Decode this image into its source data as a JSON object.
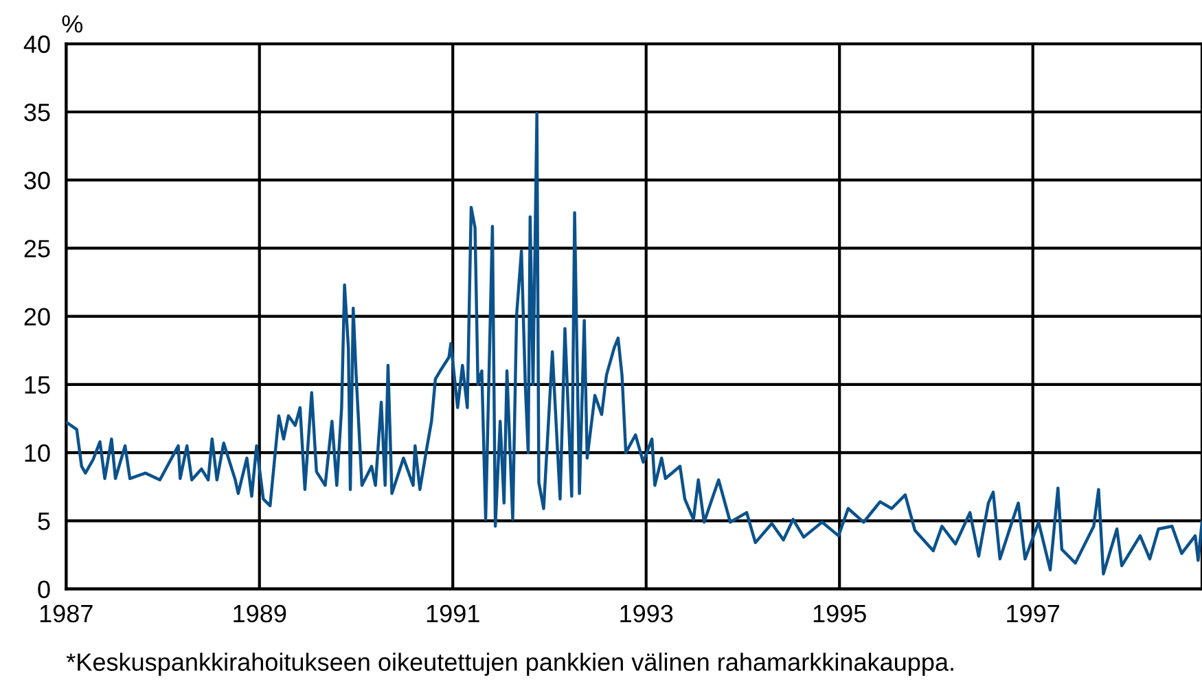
{
  "chart_data": {
    "type": "line",
    "ylabel": "%",
    "annotations": [
      "*Keskuspankkirahoitukseen oikeutettujen pankkien välinen rahamarkkinakauppa."
    ],
    "xlim": [
      1987,
      1998.75
    ],
    "xticks": [
      1987,
      1989,
      1991,
      1993,
      1995,
      1997
    ],
    "ylim": [
      0,
      40
    ],
    "yticks": [
      0,
      5,
      10,
      15,
      20,
      25,
      30,
      35,
      40
    ],
    "grid": true,
    "line_style": "solid",
    "marker": "none",
    "series": [
      {
        "color": "#0b528c",
        "x": [
          1987.01,
          1987.11,
          1987.16,
          1987.2,
          1987.28,
          1987.35,
          1987.4,
          1987.47,
          1987.51,
          1987.61,
          1987.66,
          1987.82,
          1987.97,
          1988.16,
          1988.18,
          1988.25,
          1988.3,
          1988.4,
          1988.47,
          1988.51,
          1988.56,
          1988.63,
          1988.75,
          1988.78,
          1988.87,
          1988.92,
          1988.97,
          1989.04,
          1989.11,
          1989.2,
          1989.25,
          1989.3,
          1989.37,
          1989.42,
          1989.47,
          1989.54,
          1989.59,
          1989.68,
          1989.75,
          1989.8,
          1989.85,
          1989.88,
          1989.92,
          1989.94,
          1989.97,
          1990.0,
          1990.06,
          1990.16,
          1990.2,
          1990.26,
          1990.3,
          1990.33,
          1990.37,
          1990.49,
          1990.59,
          1990.61,
          1990.66,
          1990.73,
          1990.78,
          1990.82,
          1990.87,
          1990.96,
          1990.98,
          1991.05,
          1991.1,
          1991.15,
          1991.19,
          1991.23,
          1991.26,
          1991.3,
          1991.34,
          1991.37,
          1991.41,
          1991.44,
          1991.49,
          1991.53,
          1991.56,
          1991.62,
          1991.66,
          1991.71,
          1991.75,
          1991.78,
          1991.8,
          1991.83,
          1991.87,
          1991.89,
          1991.94,
          1992.03,
          1992.11,
          1992.16,
          1992.23,
          1992.26,
          1992.31,
          1992.36,
          1992.39,
          1992.47,
          1992.54,
          1992.59,
          1992.67,
          1992.71,
          1992.75,
          1992.79,
          1992.89,
          1992.97,
          1993.06,
          1993.09,
          1993.16,
          1993.2,
          1993.35,
          1993.4,
          1993.49,
          1993.54,
          1993.6,
          1993.75,
          1993.87,
          1994.04,
          1994.13,
          1994.3,
          1994.42,
          1994.52,
          1994.63,
          1994.82,
          1994.99,
          1995.09,
          1995.25,
          1995.42,
          1995.54,
          1995.68,
          1995.78,
          1995.97,
          1996.06,
          1996.2,
          1996.35,
          1996.44,
          1996.54,
          1996.59,
          1996.66,
          1996.77,
          1996.85,
          1996.92,
          1997.06,
          1997.18,
          1997.26,
          1997.3,
          1997.44,
          1997.63,
          1997.68,
          1997.73,
          1997.87,
          1997.92,
          1998.11,
          1998.21,
          1998.3,
          1998.44,
          1998.54,
          1998.68,
          1998.71,
          1998.75
        ],
        "values": [
          12.2,
          11.7,
          9.0,
          8.5,
          9.5,
          10.8,
          8.1,
          11.0,
          8.1,
          10.5,
          8.1,
          8.5,
          8.0,
          10.5,
          8.1,
          10.5,
          8.0,
          8.8,
          8.0,
          11.0,
          8.0,
          10.7,
          8.0,
          7.0,
          9.6,
          6.8,
          10.5,
          6.6,
          6.1,
          12.7,
          11.0,
          12.7,
          12.0,
          13.3,
          7.3,
          14.4,
          8.6,
          7.6,
          12.3,
          7.6,
          13.3,
          22.3,
          17.7,
          7.3,
          20.6,
          15.7,
          7.6,
          9.0,
          7.6,
          13.7,
          7.6,
          16.4,
          7.0,
          9.6,
          7.6,
          10.5,
          7.3,
          10.3,
          12.3,
          15.4,
          16.0,
          17.0,
          18.0,
          13.3,
          16.4,
          13.3,
          28.0,
          26.5,
          15.0,
          16.0,
          5.1,
          14.4,
          26.6,
          4.6,
          12.3,
          6.3,
          16.0,
          5.1,
          20.1,
          24.8,
          15.0,
          10.0,
          27.3,
          15.0,
          34.9,
          7.8,
          5.9,
          17.4,
          6.6,
          19.1,
          6.8,
          27.6,
          7.0,
          19.7,
          9.6,
          14.2,
          12.8,
          15.7,
          17.7,
          18.4,
          15.7,
          10.0,
          11.3,
          9.3,
          11.0,
          7.6,
          9.6,
          8.1,
          9.0,
          6.6,
          5.1,
          8.0,
          4.9,
          8.0,
          4.9,
          5.6,
          3.4,
          4.8,
          3.6,
          5.1,
          3.8,
          4.9,
          3.9,
          5.9,
          4.9,
          6.4,
          5.9,
          6.9,
          4.3,
          2.8,
          4.6,
          3.3,
          5.6,
          2.4,
          6.3,
          7.1,
          2.2,
          4.6,
          6.3,
          2.2,
          4.9,
          1.4,
          7.4,
          2.9,
          1.9,
          4.6,
          7.3,
          1.1,
          4.4,
          1.7,
          3.9,
          2.2,
          4.4,
          4.6,
          2.6,
          3.9,
          2.1,
          4.9
        ]
      }
    ]
  }
}
